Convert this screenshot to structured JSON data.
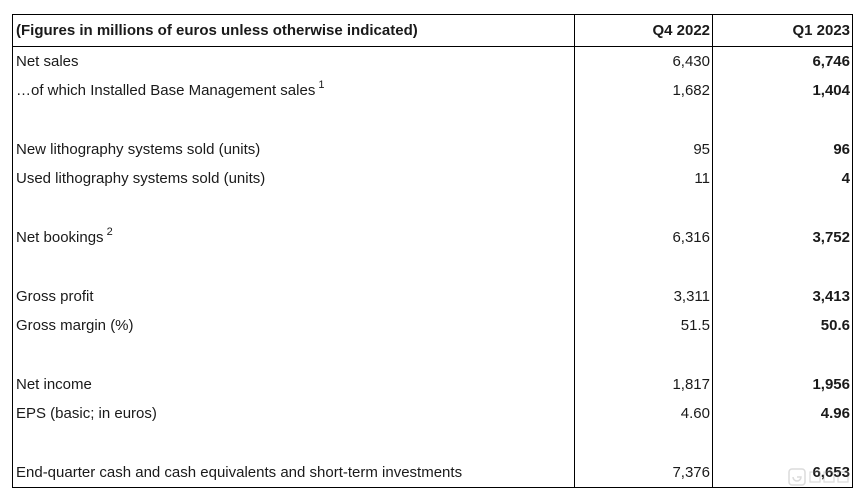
{
  "header": {
    "label": "(Figures in millions of euros unless otherwise indicated)",
    "col_q4": "Q4 2022",
    "col_q1": "Q1 2023"
  },
  "rows": {
    "net_sales": {
      "label": "Net sales",
      "q4": "6,430",
      "q1": "6,746"
    },
    "ibm_sales": {
      "label": "…of which Installed Base Management sales",
      "footnote": "1",
      "q4": "1,682",
      "q1": "1,404"
    },
    "new_litho": {
      "label": "New lithography systems sold (units)",
      "q4": "95",
      "q1": "96"
    },
    "used_litho": {
      "label": "Used lithography systems sold (units)",
      "q4": "11",
      "q1": "4"
    },
    "net_bookings": {
      "label": "Net bookings",
      "footnote": "2",
      "q4": "6,316",
      "q1": "3,752"
    },
    "gross_profit": {
      "label": "Gross profit",
      "q4": "3,311",
      "q1": "3,413"
    },
    "gross_margin": {
      "label": "Gross margin (%)",
      "q4": "51.5",
      "q1": "50.6"
    },
    "net_income": {
      "label": "Net income",
      "q4": "1,817",
      "q1": "1,956"
    },
    "eps": {
      "label": "EPS (basic; in euros)",
      "q4": "4.60",
      "q1": "4.96"
    },
    "cash": {
      "label": "End-quarter cash and cash equivalents and short-term investments",
      "q4": "7,376",
      "q1": "6,653"
    }
  },
  "watermark": {
    "icon": "gelonghui-logo-icon",
    "color": "#999999"
  }
}
